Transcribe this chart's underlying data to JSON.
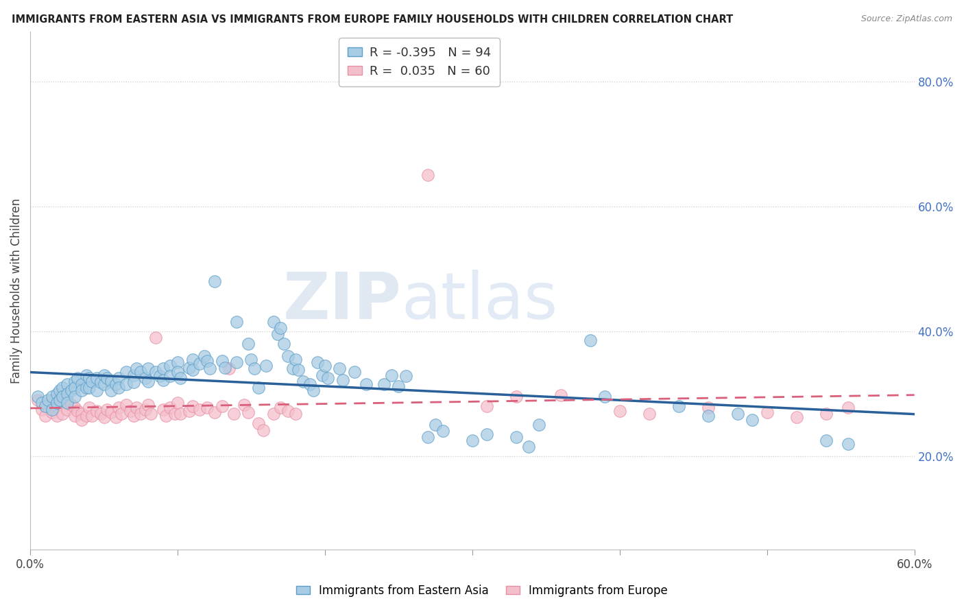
{
  "title": "IMMIGRANTS FROM EASTERN ASIA VS IMMIGRANTS FROM EUROPE FAMILY HOUSEHOLDS WITH CHILDREN CORRELATION CHART",
  "source": "Source: ZipAtlas.com",
  "ylabel": "Family Households with Children",
  "ylabel_right_labels": [
    "20.0%",
    "40.0%",
    "60.0%",
    "80.0%"
  ],
  "ylabel_right_values": [
    0.2,
    0.4,
    0.6,
    0.8
  ],
  "xmin": 0.0,
  "xmax": 0.6,
  "ymin": 0.05,
  "ymax": 0.88,
  "legend_blue_R": "-0.395",
  "legend_blue_N": "94",
  "legend_pink_R": "0.035",
  "legend_pink_N": "60",
  "blue_fill": "#a8cce4",
  "pink_fill": "#f4bfcc",
  "blue_edge": "#5b9ec9",
  "pink_edge": "#e88fa3",
  "blue_line_color": "#2a6099",
  "pink_line_color": "#d95f7a",
  "watermark_zip": "ZIP",
  "watermark_atlas": "atlas",
  "blue_scatter": [
    [
      0.005,
      0.295
    ],
    [
      0.008,
      0.285
    ],
    [
      0.01,
      0.28
    ],
    [
      0.012,
      0.29
    ],
    [
      0.015,
      0.295
    ],
    [
      0.015,
      0.275
    ],
    [
      0.018,
      0.3
    ],
    [
      0.018,
      0.285
    ],
    [
      0.02,
      0.305
    ],
    [
      0.02,
      0.29
    ],
    [
      0.022,
      0.31
    ],
    [
      0.022,
      0.295
    ],
    [
      0.025,
      0.315
    ],
    [
      0.025,
      0.3
    ],
    [
      0.025,
      0.285
    ],
    [
      0.028,
      0.305
    ],
    [
      0.03,
      0.32
    ],
    [
      0.03,
      0.31
    ],
    [
      0.03,
      0.295
    ],
    [
      0.032,
      0.325
    ],
    [
      0.035,
      0.315
    ],
    [
      0.035,
      0.305
    ],
    [
      0.038,
      0.33
    ],
    [
      0.038,
      0.31
    ],
    [
      0.04,
      0.325
    ],
    [
      0.04,
      0.31
    ],
    [
      0.042,
      0.32
    ],
    [
      0.045,
      0.325
    ],
    [
      0.045,
      0.305
    ],
    [
      0.048,
      0.318
    ],
    [
      0.05,
      0.33
    ],
    [
      0.05,
      0.315
    ],
    [
      0.052,
      0.325
    ],
    [
      0.055,
      0.32
    ],
    [
      0.055,
      0.305
    ],
    [
      0.058,
      0.315
    ],
    [
      0.06,
      0.325
    ],
    [
      0.06,
      0.31
    ],
    [
      0.065,
      0.335
    ],
    [
      0.065,
      0.315
    ],
    [
      0.07,
      0.33
    ],
    [
      0.07,
      0.318
    ],
    [
      0.072,
      0.34
    ],
    [
      0.075,
      0.335
    ],
    [
      0.078,
      0.325
    ],
    [
      0.08,
      0.34
    ],
    [
      0.08,
      0.32
    ],
    [
      0.085,
      0.335
    ],
    [
      0.088,
      0.328
    ],
    [
      0.09,
      0.34
    ],
    [
      0.09,
      0.322
    ],
    [
      0.095,
      0.345
    ],
    [
      0.095,
      0.328
    ],
    [
      0.1,
      0.35
    ],
    [
      0.1,
      0.335
    ],
    [
      0.102,
      0.325
    ],
    [
      0.108,
      0.342
    ],
    [
      0.11,
      0.355
    ],
    [
      0.11,
      0.338
    ],
    [
      0.115,
      0.348
    ],
    [
      0.118,
      0.36
    ],
    [
      0.12,
      0.352
    ],
    [
      0.122,
      0.34
    ],
    [
      0.125,
      0.48
    ],
    [
      0.13,
      0.352
    ],
    [
      0.132,
      0.342
    ],
    [
      0.14,
      0.415
    ],
    [
      0.14,
      0.35
    ],
    [
      0.148,
      0.38
    ],
    [
      0.15,
      0.355
    ],
    [
      0.152,
      0.34
    ],
    [
      0.155,
      0.31
    ],
    [
      0.16,
      0.345
    ],
    [
      0.165,
      0.415
    ],
    [
      0.168,
      0.395
    ],
    [
      0.17,
      0.405
    ],
    [
      0.172,
      0.38
    ],
    [
      0.175,
      0.36
    ],
    [
      0.178,
      0.34
    ],
    [
      0.18,
      0.355
    ],
    [
      0.182,
      0.338
    ],
    [
      0.185,
      0.32
    ],
    [
      0.19,
      0.315
    ],
    [
      0.192,
      0.305
    ],
    [
      0.195,
      0.35
    ],
    [
      0.198,
      0.33
    ],
    [
      0.2,
      0.345
    ],
    [
      0.202,
      0.325
    ],
    [
      0.21,
      0.34
    ],
    [
      0.212,
      0.322
    ],
    [
      0.22,
      0.335
    ],
    [
      0.228,
      0.315
    ],
    [
      0.24,
      0.315
    ],
    [
      0.245,
      0.33
    ],
    [
      0.25,
      0.312
    ],
    [
      0.255,
      0.328
    ],
    [
      0.27,
      0.23
    ],
    [
      0.275,
      0.25
    ],
    [
      0.28,
      0.24
    ],
    [
      0.3,
      0.225
    ],
    [
      0.31,
      0.235
    ],
    [
      0.33,
      0.23
    ],
    [
      0.338,
      0.215
    ],
    [
      0.345,
      0.25
    ],
    [
      0.38,
      0.385
    ],
    [
      0.39,
      0.295
    ],
    [
      0.44,
      0.28
    ],
    [
      0.46,
      0.265
    ],
    [
      0.48,
      0.268
    ],
    [
      0.49,
      0.258
    ],
    [
      0.54,
      0.225
    ],
    [
      0.555,
      0.22
    ]
  ],
  "pink_scatter": [
    [
      0.005,
      0.29
    ],
    [
      0.008,
      0.275
    ],
    [
      0.01,
      0.265
    ],
    [
      0.012,
      0.28
    ],
    [
      0.015,
      0.29
    ],
    [
      0.015,
      0.27
    ],
    [
      0.018,
      0.28
    ],
    [
      0.018,
      0.265
    ],
    [
      0.02,
      0.295
    ],
    [
      0.022,
      0.285
    ],
    [
      0.022,
      0.268
    ],
    [
      0.025,
      0.29
    ],
    [
      0.025,
      0.275
    ],
    [
      0.028,
      0.282
    ],
    [
      0.03,
      0.278
    ],
    [
      0.03,
      0.265
    ],
    [
      0.032,
      0.272
    ],
    [
      0.035,
      0.268
    ],
    [
      0.035,
      0.258
    ],
    [
      0.038,
      0.265
    ],
    [
      0.04,
      0.278
    ],
    [
      0.042,
      0.265
    ],
    [
      0.045,
      0.272
    ],
    [
      0.048,
      0.268
    ],
    [
      0.05,
      0.262
    ],
    [
      0.052,
      0.275
    ],
    [
      0.055,
      0.27
    ],
    [
      0.058,
      0.262
    ],
    [
      0.06,
      0.278
    ],
    [
      0.062,
      0.268
    ],
    [
      0.065,
      0.282
    ],
    [
      0.068,
      0.272
    ],
    [
      0.07,
      0.265
    ],
    [
      0.072,
      0.278
    ],
    [
      0.075,
      0.268
    ],
    [
      0.078,
      0.275
    ],
    [
      0.08,
      0.282
    ],
    [
      0.082,
      0.268
    ],
    [
      0.085,
      0.39
    ],
    [
      0.09,
      0.275
    ],
    [
      0.092,
      0.265
    ],
    [
      0.095,
      0.278
    ],
    [
      0.098,
      0.268
    ],
    [
      0.1,
      0.285
    ],
    [
      0.102,
      0.268
    ],
    [
      0.108,
      0.272
    ],
    [
      0.11,
      0.28
    ],
    [
      0.115,
      0.275
    ],
    [
      0.12,
      0.278
    ],
    [
      0.125,
      0.27
    ],
    [
      0.13,
      0.28
    ],
    [
      0.135,
      0.34
    ],
    [
      0.138,
      0.268
    ],
    [
      0.145,
      0.282
    ],
    [
      0.148,
      0.27
    ],
    [
      0.155,
      0.252
    ],
    [
      0.158,
      0.242
    ],
    [
      0.165,
      0.268
    ],
    [
      0.17,
      0.278
    ],
    [
      0.175,
      0.272
    ],
    [
      0.18,
      0.268
    ],
    [
      0.27,
      0.65
    ],
    [
      0.31,
      0.28
    ],
    [
      0.33,
      0.295
    ],
    [
      0.36,
      0.298
    ],
    [
      0.4,
      0.272
    ],
    [
      0.42,
      0.268
    ],
    [
      0.46,
      0.278
    ],
    [
      0.5,
      0.27
    ],
    [
      0.52,
      0.262
    ],
    [
      0.54,
      0.268
    ],
    [
      0.555,
      0.278
    ]
  ]
}
